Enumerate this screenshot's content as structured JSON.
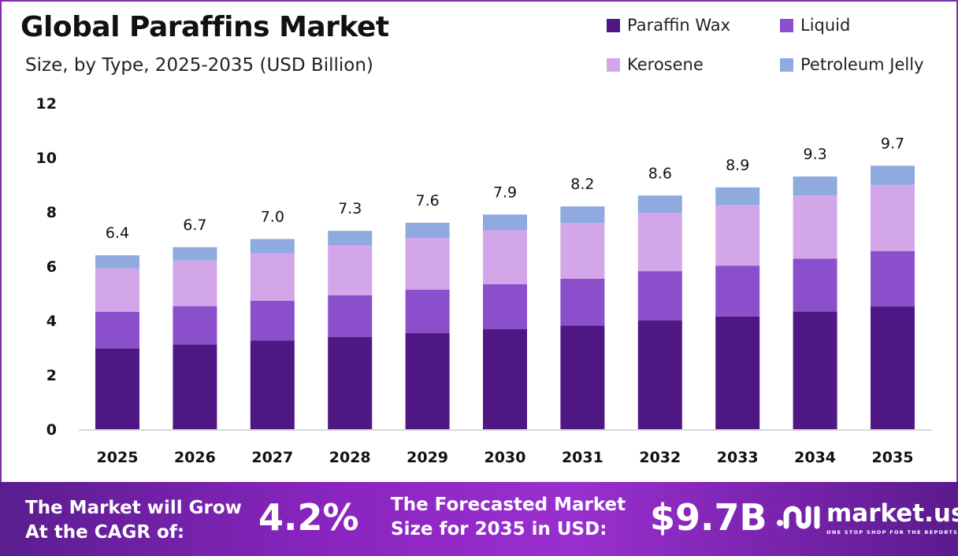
{
  "header": {
    "title": "Global Paraffins Market",
    "subtitle": "Size, by Type, 2025-2035 (USD Billion)"
  },
  "chart_data": {
    "type": "bar",
    "stacked": true,
    "title": "Global Paraffins Market",
    "subtitle": "Size, by Type, 2025-2035 (USD Billion)",
    "categories": [
      "2025",
      "2026",
      "2027",
      "2028",
      "2029",
      "2030",
      "2031",
      "2032",
      "2033",
      "2034",
      "2035"
    ],
    "series": [
      {
        "name": "Paraffin Wax",
        "color": "#4f1783",
        "values": [
          2.98,
          3.12,
          3.26,
          3.4,
          3.54,
          3.68,
          3.82,
          4.01,
          4.15,
          4.33,
          4.52
        ]
      },
      {
        "name": "Liquid",
        "color": "#8b4fcc",
        "values": [
          1.34,
          1.41,
          1.47,
          1.53,
          1.6,
          1.66,
          1.72,
          1.81,
          1.87,
          1.95,
          2.04
        ]
      },
      {
        "name": "Kerosene",
        "color": "#d3a6ea",
        "values": [
          1.6,
          1.68,
          1.75,
          1.83,
          1.9,
          1.98,
          2.05,
          2.15,
          2.23,
          2.33,
          2.43
        ]
      },
      {
        "name": "Petroleum Jelly",
        "color": "#8eaadf",
        "values": [
          0.48,
          0.49,
          0.52,
          0.54,
          0.56,
          0.58,
          0.61,
          0.63,
          0.65,
          0.69,
          0.71
        ]
      }
    ],
    "totals": [
      "6.4",
      "6.7",
      "7.0",
      "7.3",
      "7.6",
      "7.9",
      "8.2",
      "8.6",
      "8.9",
      "9.3",
      "9.7"
    ],
    "ylim": [
      0,
      12
    ],
    "yticks": [
      "0",
      "2",
      "4",
      "6",
      "8",
      "10",
      "12"
    ],
    "grid": false,
    "legend": "top-right"
  },
  "footer": {
    "cagr_label_1": "The Market will Grow",
    "cagr_label_2": "At the CAGR of:",
    "cagr_value": "4.2%",
    "forecast_label_1": "The Forecasted Market",
    "forecast_label_2": "Size for 2035 in USD:",
    "forecast_value": "$9.7B",
    "brand": "market.us",
    "brand_tagline": "ONE STOP SHOP FOR THE REPORTS"
  }
}
